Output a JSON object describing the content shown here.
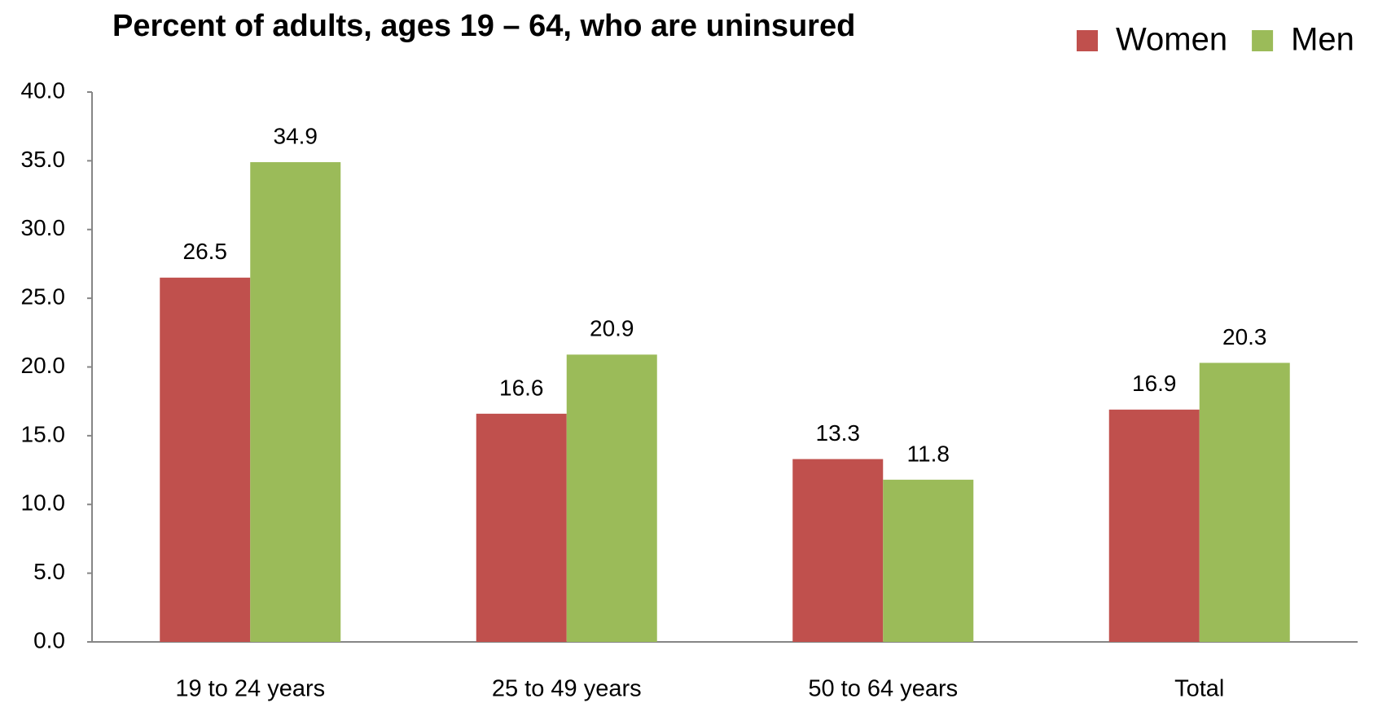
{
  "chart_data": {
    "type": "bar",
    "title": "Percent of adults, ages 19 – 64, who are uninsured",
    "categories": [
      "19 to 24 years",
      "25 to 49 years",
      "50 to 64 years",
      "Total"
    ],
    "series": [
      {
        "name": "Women",
        "color": "#c0504d",
        "values": [
          26.5,
          16.6,
          13.3,
          16.9
        ]
      },
      {
        "name": "Men",
        "color": "#9bbb59",
        "values": [
          34.9,
          20.9,
          11.8,
          20.3
        ]
      }
    ],
    "ylim": [
      0,
      40
    ],
    "yticks": [
      {
        "value": 0,
        "label": "0.0"
      },
      {
        "value": 5,
        "label": "5.0"
      },
      {
        "value": 10,
        "label": "10.0"
      },
      {
        "value": 15,
        "label": "15.0"
      },
      {
        "value": 20,
        "label": "20.0"
      },
      {
        "value": 25,
        "label": "25.0"
      },
      {
        "value": 30,
        "label": "30.0"
      },
      {
        "value": 35,
        "label": "35.0"
      },
      {
        "value": 40,
        "label": "40.0"
      }
    ],
    "grid": false,
    "legend": "top-right"
  }
}
